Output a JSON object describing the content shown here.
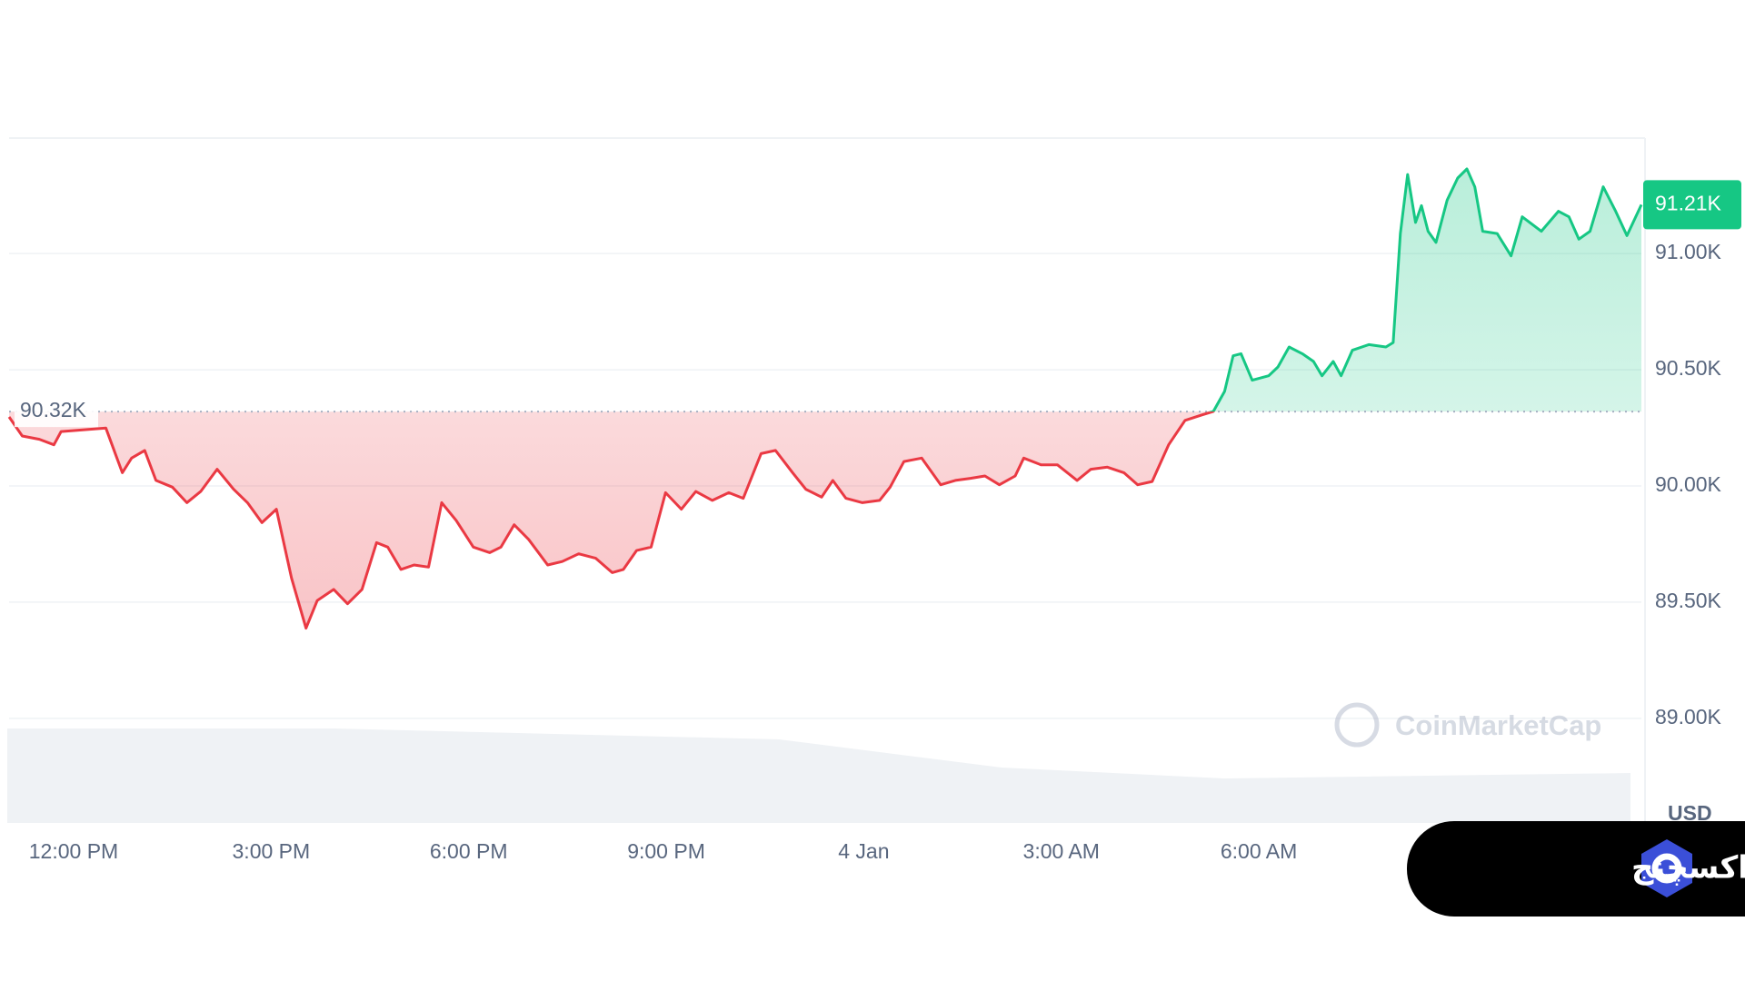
{
  "chart_data": {
    "type": "line",
    "x": [
      -0.98,
      -0.78,
      -0.52,
      -0.3,
      -0.19,
      0.49,
      0.74,
      0.88,
      1.08,
      1.25,
      1.5,
      1.72,
      1.93,
      2.18,
      2.43,
      2.64,
      2.86,
      3.08,
      3.31,
      3.53,
      3.7,
      3.95,
      4.16,
      4.38,
      4.6,
      4.77,
      4.97,
      5.17,
      5.39,
      5.59,
      5.81,
      6.07,
      6.32,
      6.49,
      6.69,
      6.91,
      7.2,
      7.42,
      7.67,
      7.93,
      8.18,
      8.35,
      8.55,
      8.77,
      8.99,
      9.23,
      9.45,
      9.7,
      9.95,
      10.17,
      10.44,
      10.66,
      10.92,
      11.12,
      11.36,
      11.53,
      11.73,
      11.98,
      12.24,
      12.4,
      12.61,
      12.88,
      13.17,
      13.39,
      13.62,
      13.84,
      14.06,
      14.3,
      14.43,
      14.69,
      14.94,
      15.24,
      15.45,
      15.7,
      15.95,
      16.16,
      16.38,
      16.63,
      16.88,
      17.14,
      17.31,
      17.48,
      17.61,
      17.73,
      17.9,
      18.15,
      18.29,
      18.46,
      18.66,
      18.83,
      18.96,
      19.13,
      19.25,
      19.42,
      19.67,
      19.93,
      20.04,
      20.15,
      20.26,
      20.38,
      20.47,
      20.57,
      20.69,
      20.86,
      21.02,
      21.16,
      21.28,
      21.4,
      21.62,
      21.83,
      22.0,
      22.29,
      22.55,
      22.71,
      22.86,
      23.03,
      23.23,
      23.42,
      23.59,
      23.81
    ],
    "values": [
      90.297,
      90.215,
      90.201,
      90.177,
      90.234,
      90.249,
      90.057,
      90.12,
      90.153,
      90.024,
      89.995,
      89.928,
      89.976,
      90.072,
      89.986,
      89.928,
      89.842,
      89.9,
      89.603,
      89.388,
      89.507,
      89.555,
      89.493,
      89.555,
      89.756,
      89.737,
      89.641,
      89.66,
      89.651,
      89.928,
      89.852,
      89.737,
      89.713,
      89.737,
      89.833,
      89.77,
      89.66,
      89.675,
      89.708,
      89.689,
      89.627,
      89.641,
      89.722,
      89.737,
      89.971,
      89.9,
      89.976,
      89.938,
      89.971,
      89.947,
      90.139,
      90.153,
      90.057,
      89.986,
      89.952,
      90.024,
      89.947,
      89.928,
      89.938,
      89.995,
      90.105,
      90.12,
      90.005,
      90.024,
      90.033,
      90.043,
      90.005,
      90.043,
      90.12,
      90.091,
      90.091,
      90.024,
      90.072,
      90.081,
      90.057,
      90.005,
      90.019,
      90.177,
      90.282,
      90.306,
      90.321,
      90.407,
      90.56,
      90.569,
      90.455,
      90.474,
      90.512,
      90.598,
      90.569,
      90.536,
      90.474,
      90.536,
      90.474,
      90.584,
      90.608,
      90.598,
      90.617,
      91.086,
      91.34,
      91.134,
      91.206,
      91.096,
      91.048,
      91.23,
      91.325,
      91.364,
      91.287,
      91.096,
      91.086,
      90.99,
      91.158,
      91.096,
      91.182,
      91.158,
      91.062,
      91.096,
      91.287,
      91.182,
      91.077,
      91.21
    ],
    "up_color": "#16c784",
    "down_color": "#ea3943",
    "baseline": {
      "value": 90.32,
      "label": "90.32K"
    },
    "last_price": {
      "value": 91.21,
      "label": "91.21K"
    },
    "xlim": [
      -0.98,
      23.81
    ],
    "xticks": [
      {
        "value": 0,
        "label": "12:00 PM"
      },
      {
        "value": 3,
        "label": "3:00 PM"
      },
      {
        "value": 6,
        "label": "6:00 PM"
      },
      {
        "value": 9,
        "label": "9:00 PM"
      },
      {
        "value": 12,
        "label": "4 Jan"
      },
      {
        "value": 15,
        "label": "3:00 AM"
      },
      {
        "value": 18,
        "label": "6:00 AM"
      }
    ],
    "ylim": [
      88.55,
      91.493
    ],
    "yticks": [
      {
        "value": 89,
        "label": "89.00K"
      },
      {
        "value": 89.5,
        "label": "89.50K"
      },
      {
        "value": 90,
        "label": "90.00K"
      },
      {
        "value": 90.5,
        "label": "90.50K"
      },
      {
        "value": 91,
        "label": "91.00K"
      }
    ],
    "y_label": "USD",
    "grid": true,
    "watermark": "CoinMarketCap"
  },
  "badge": {
    "text": "اوکی اکسچنج"
  }
}
